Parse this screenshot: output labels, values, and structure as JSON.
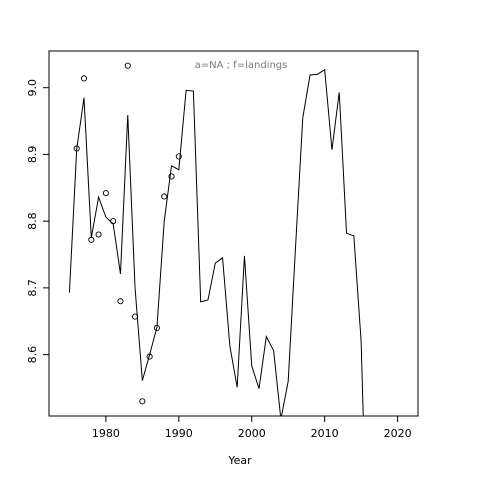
{
  "chart_data": {
    "type": "line",
    "title": "",
    "annotation": "a=NA  ;  f=landings",
    "xlabel": "Year",
    "ylabel": "",
    "xlim": [
      1972.2,
      2022.8
    ],
    "ylim": [
      8.508,
      9.055
    ],
    "x_ticks": [
      1980,
      1990,
      2000,
      2010,
      2020
    ],
    "x_tick_labels": [
      "1980",
      "1990",
      "2000",
      "2010",
      "2020"
    ],
    "y_ticks": [
      8.6,
      8.7,
      8.8,
      8.9,
      9.0
    ],
    "y_tick_labels": [
      "8.6",
      "8.7",
      "8.8",
      "8.9",
      "9.0"
    ],
    "grid": false,
    "legend": "none",
    "series": [
      {
        "style": "line",
        "color": "#000000",
        "points": [
          [
            1975,
            8.693
          ],
          [
            1976,
            8.908
          ],
          [
            1977,
            8.985
          ],
          [
            1978,
            8.775
          ],
          [
            1979,
            8.836
          ],
          [
            1980,
            8.806
          ],
          [
            1981,
            8.796
          ],
          [
            1982,
            8.721
          ],
          [
            1983,
            8.959
          ],
          [
            1984,
            8.7
          ],
          [
            1985,
            8.561
          ],
          [
            1986,
            8.6
          ],
          [
            1987,
            8.641
          ],
          [
            1988,
            8.8
          ],
          [
            1989,
            8.883
          ],
          [
            1990,
            8.877
          ],
          [
            1991,
            8.996
          ],
          [
            1992,
            8.995
          ],
          [
            1993,
            8.679
          ],
          [
            1994,
            8.682
          ],
          [
            1995,
            8.737
          ],
          [
            1996,
            8.745
          ],
          [
            1997,
            8.613
          ],
          [
            1998,
            8.551
          ],
          [
            1999,
            8.748
          ],
          [
            2000,
            8.583
          ],
          [
            2001,
            8.549
          ],
          [
            2002,
            8.627
          ],
          [
            2003,
            8.606
          ],
          [
            2004,
            8.503
          ],
          [
            2005,
            8.56
          ],
          [
            2006,
            8.76
          ],
          [
            2007,
            8.955
          ],
          [
            2008,
            9.019
          ],
          [
            2009,
            9.02
          ],
          [
            2010,
            9.027
          ],
          [
            2011,
            8.907
          ],
          [
            2012,
            8.993
          ],
          [
            2013,
            8.782
          ],
          [
            2014,
            8.778
          ],
          [
            2015,
            8.62
          ],
          [
            2015.3,
            8.505
          ]
        ]
      },
      {
        "style": "points",
        "color": "#000000",
        "points": [
          [
            1976,
            8.909
          ],
          [
            1977,
            9.014
          ],
          [
            1978,
            8.772
          ],
          [
            1979,
            8.78
          ],
          [
            1980,
            8.842
          ],
          [
            1981,
            8.8
          ],
          [
            1982,
            8.68
          ],
          [
            1983,
            9.033
          ],
          [
            1984,
            8.657
          ],
          [
            1985,
            8.53
          ],
          [
            1986,
            8.597
          ],
          [
            1987,
            8.64
          ],
          [
            1988,
            8.837
          ],
          [
            1989,
            8.867
          ],
          [
            1990,
            8.897
          ]
        ]
      }
    ]
  }
}
